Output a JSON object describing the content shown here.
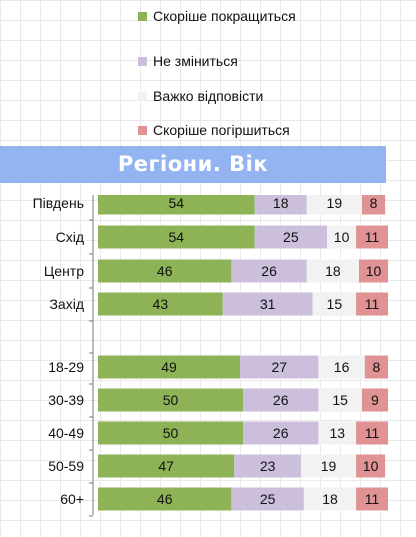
{
  "legend": {
    "items": [
      {
        "label": "Скоріше покращиться",
        "color": "#8db356"
      },
      {
        "label": "Не зміниться",
        "color": "#cbbfdc"
      },
      {
        "label": "Важко відповісти",
        "color": "#f2f2f2"
      },
      {
        "label": "Скоріше погіршиться",
        "color": "#df9394"
      }
    ]
  },
  "banner": {
    "title": "Регіони. Вік"
  },
  "chart_data": {
    "type": "bar",
    "orientation": "horizontal",
    "stacked": true,
    "groups": [
      [
        "Південь",
        "Схід",
        "Центр",
        "Захід"
      ],
      [
        "18-29",
        "30-39",
        "40-49",
        "50-59",
        "60+"
      ]
    ],
    "categories": [
      "Південь",
      "Схід",
      "Центр",
      "Захід",
      "18-29",
      "30-39",
      "40-49",
      "50-59",
      "60+"
    ],
    "series": [
      {
        "name": "Скоріше покращиться",
        "color": "#8db356",
        "values": [
          54,
          54,
          46,
          43,
          49,
          50,
          50,
          47,
          46
        ]
      },
      {
        "name": "Не зміниться",
        "color": "#cbbfdc",
        "values": [
          18,
          25,
          26,
          31,
          27,
          26,
          26,
          23,
          25
        ]
      },
      {
        "name": "Важко відповісти",
        "color": "#f2f2f2",
        "values": [
          19,
          10,
          18,
          15,
          16,
          15,
          13,
          19,
          18
        ]
      },
      {
        "name": "Скоріше погіршиться",
        "color": "#df9394",
        "values": [
          8,
          11,
          10,
          11,
          8,
          9,
          11,
          10,
          11
        ]
      }
    ],
    "data_labels": true,
    "xlim": [
      0,
      100
    ],
    "grid": false
  }
}
